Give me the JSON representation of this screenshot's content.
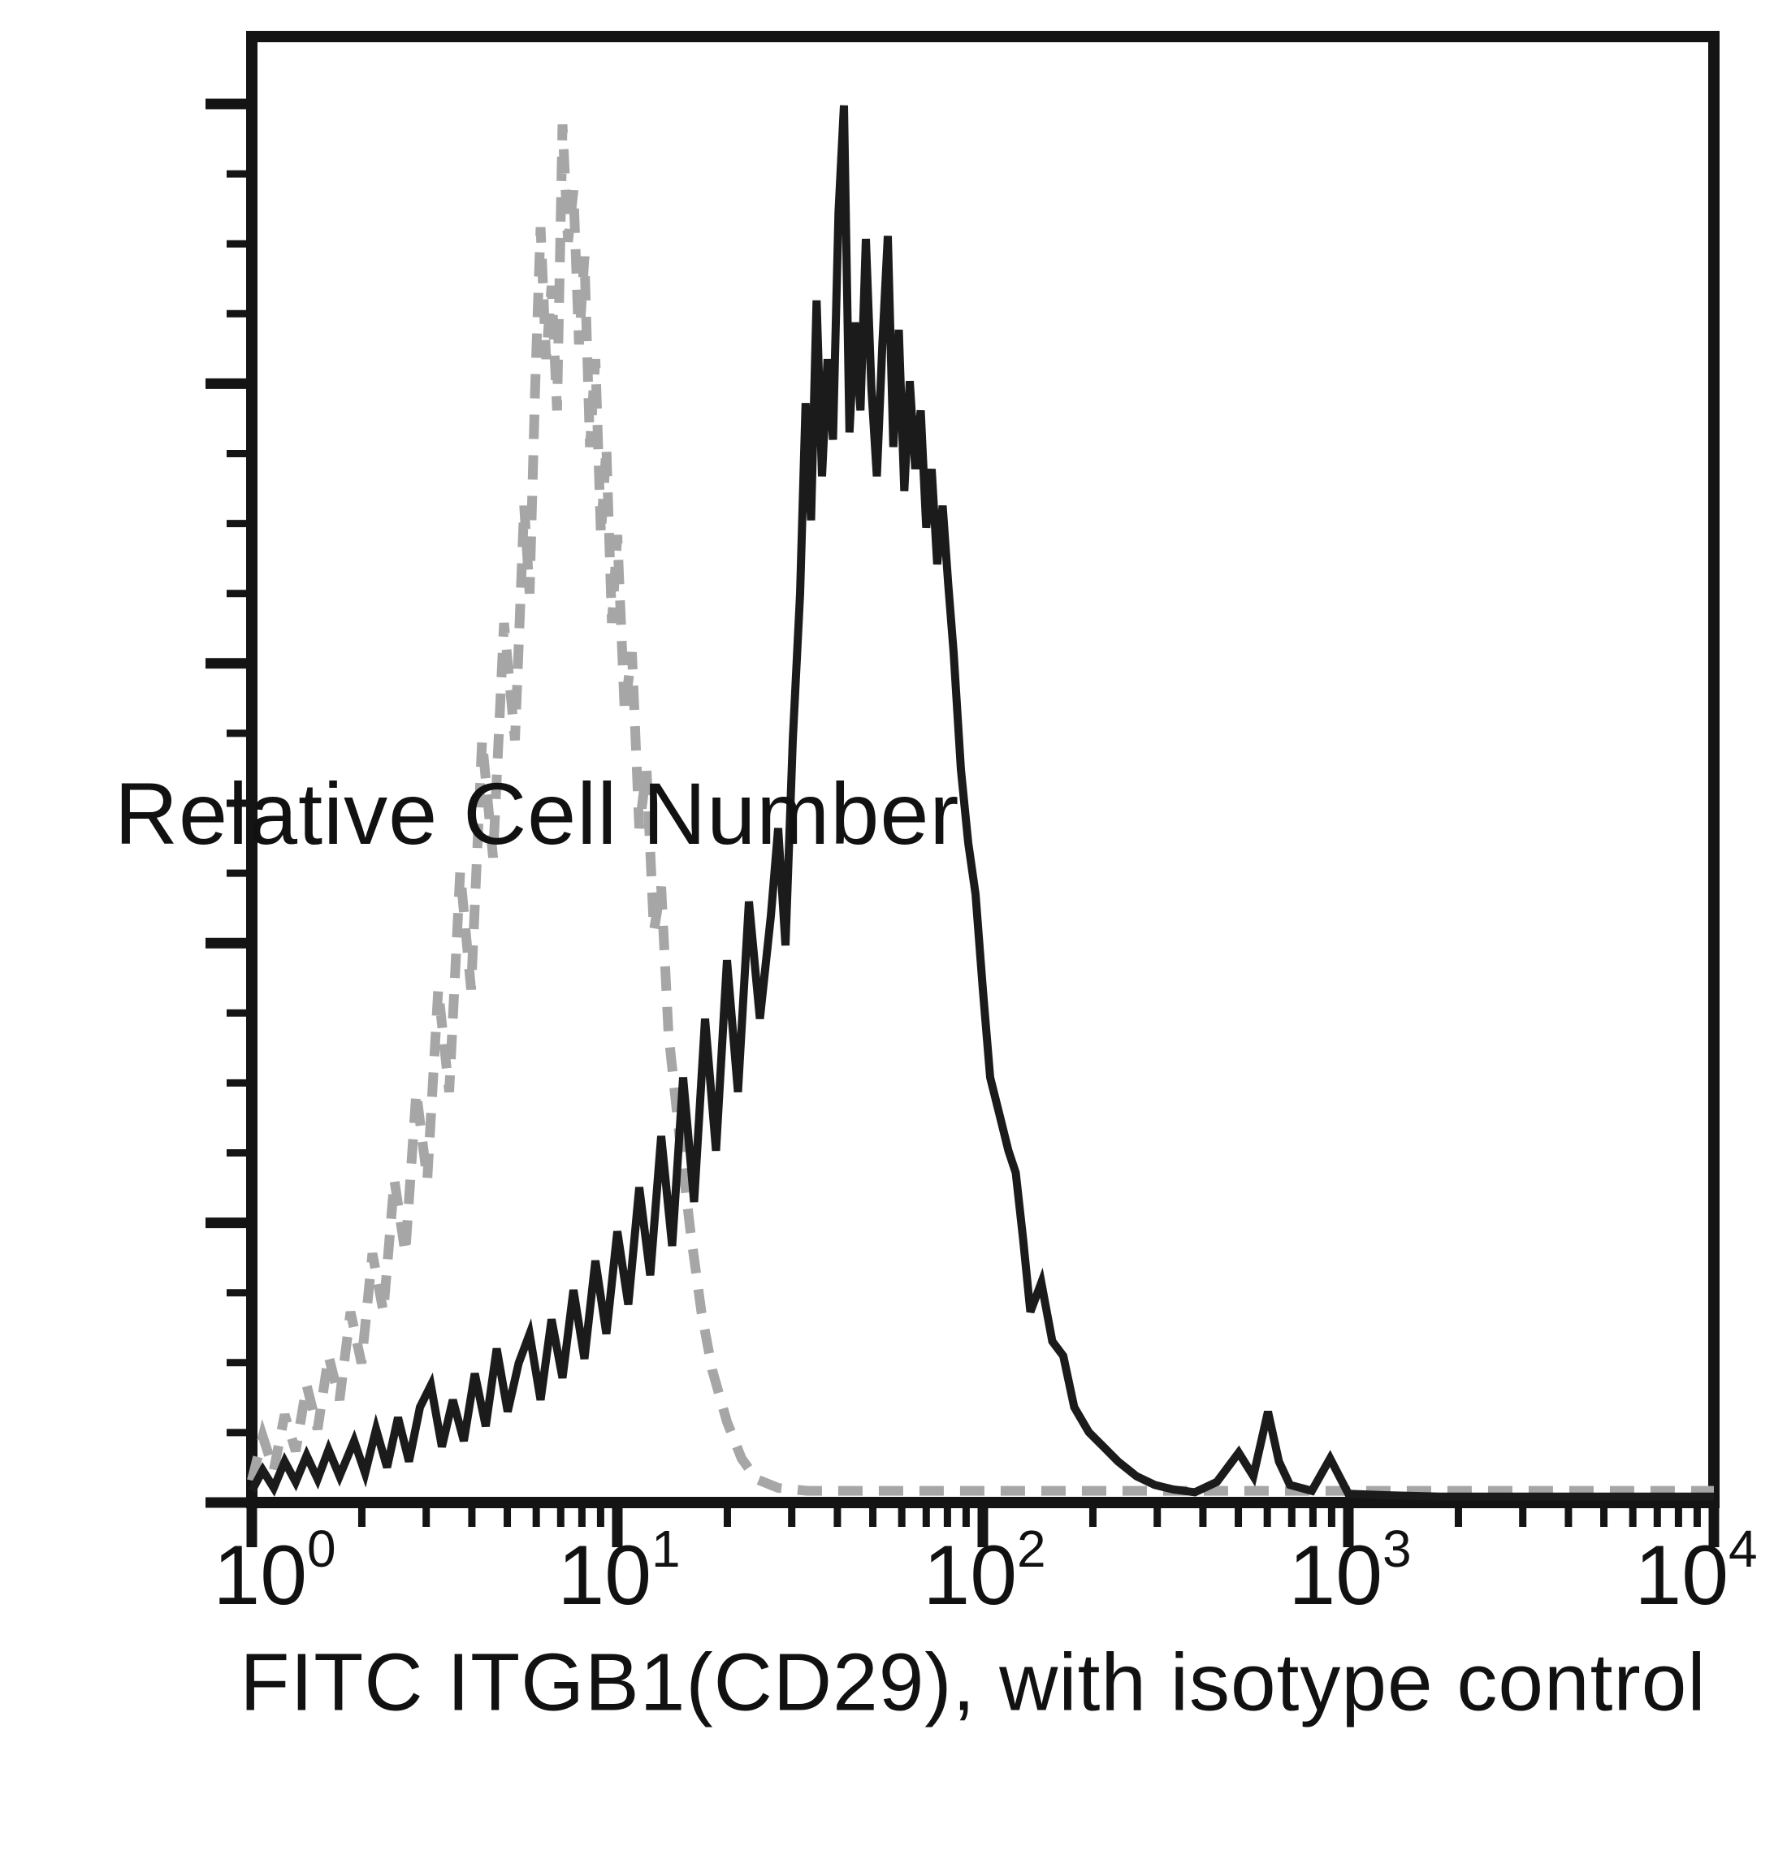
{
  "axes": {
    "y": {
      "label": "Relative Cell Number",
      "tick_labels": []
    },
    "x": {
      "label": "FITC ITGB1(CD29), with isotype control",
      "ticks": [
        {
          "base": "10",
          "exp": "0"
        },
        {
          "base": "10",
          "exp": "1"
        },
        {
          "base": "10",
          "exp": "2"
        },
        {
          "base": "10",
          "exp": "3"
        },
        {
          "base": "10",
          "exp": "4"
        }
      ]
    }
  },
  "chart_data": {
    "type": "line",
    "subtype": "flow-cytometry-overlay-histogram",
    "title": "",
    "xlabel": "FITC ITGB1(CD29), with isotype control",
    "ylabel": "Relative Cell Number",
    "x_scale": "log10",
    "x_range": [
      1,
      10000
    ],
    "x_decades": 4,
    "y_range_relative": [
      0,
      1
    ],
    "y_major_ticks": 6,
    "y_minors_per_major_gap": 3,
    "grid": false,
    "legend_position": "none",
    "frame_color": "#141414",
    "background": "#ffffff",
    "series": [
      {
        "name": "Isotype control",
        "line_style": "dashed",
        "color": "#a6a6a6",
        "stroke_width": 12,
        "dash": [
          30,
          20
        ],
        "peak_x_approx": 7,
        "points_log10x_relheight": [
          [
            0,
            0.015
          ],
          [
            0.03,
            0.045
          ],
          [
            0.06,
            0.022
          ],
          [
            0.09,
            0.06
          ],
          [
            0.12,
            0.035
          ],
          [
            0.15,
            0.08
          ],
          [
            0.18,
            0.05
          ],
          [
            0.21,
            0.1
          ],
          [
            0.24,
            0.07
          ],
          [
            0.27,
            0.13
          ],
          [
            0.3,
            0.095
          ],
          [
            0.33,
            0.17
          ],
          [
            0.36,
            0.13
          ],
          [
            0.39,
            0.22
          ],
          [
            0.42,
            0.17
          ],
          [
            0.45,
            0.28
          ],
          [
            0.48,
            0.22
          ],
          [
            0.51,
            0.35
          ],
          [
            0.54,
            0.28
          ],
          [
            0.57,
            0.43
          ],
          [
            0.6,
            0.35
          ],
          [
            0.63,
            0.52
          ],
          [
            0.66,
            0.44
          ],
          [
            0.69,
            0.6
          ],
          [
            0.72,
            0.52
          ],
          [
            0.745,
            0.68
          ],
          [
            0.76,
            0.62
          ],
          [
            0.775,
            0.76
          ],
          [
            0.79,
            0.87
          ],
          [
            0.805,
            0.78
          ],
          [
            0.82,
            0.83
          ],
          [
            0.835,
            0.745
          ],
          [
            0.85,
            0.94
          ],
          [
            0.865,
            0.86
          ],
          [
            0.88,
            0.895
          ],
          [
            0.895,
            0.79
          ],
          [
            0.91,
            0.85
          ],
          [
            0.925,
            0.72
          ],
          [
            0.94,
            0.78
          ],
          [
            0.955,
            0.66
          ],
          [
            0.97,
            0.72
          ],
          [
            0.985,
            0.6
          ],
          [
            1,
            0.66
          ],
          [
            1.02,
            0.54
          ],
          [
            1.04,
            0.58
          ],
          [
            1.06,
            0.46
          ],
          [
            1.08,
            0.5
          ],
          [
            1.1,
            0.39
          ],
          [
            1.12,
            0.42
          ],
          [
            1.14,
            0.32
          ],
          [
            1.17,
            0.25
          ],
          [
            1.2,
            0.185
          ],
          [
            1.23,
            0.13
          ],
          [
            1.26,
            0.09
          ],
          [
            1.3,
            0.055
          ],
          [
            1.34,
            0.03
          ],
          [
            1.38,
            0.016
          ],
          [
            1.44,
            0.01
          ],
          [
            1.52,
            0.008
          ],
          [
            1.7,
            0.008
          ],
          [
            2,
            0.008
          ],
          [
            2.3,
            0.008
          ],
          [
            2.6,
            0.008
          ],
          [
            3,
            0.008
          ],
          [
            3.4,
            0.008
          ],
          [
            3.7,
            0.008
          ],
          [
            4,
            0.008
          ]
        ]
      },
      {
        "name": "FITC ITGB1(CD29)",
        "line_style": "solid",
        "color": "#1b1b1b",
        "stroke_width": 10,
        "peak_x_approx": 42,
        "points_log10x_relheight": [
          [
            0,
            0.008
          ],
          [
            0.03,
            0.022
          ],
          [
            0.06,
            0.01
          ],
          [
            0.09,
            0.028
          ],
          [
            0.12,
            0.014
          ],
          [
            0.15,
            0.032
          ],
          [
            0.18,
            0.016
          ],
          [
            0.21,
            0.036
          ],
          [
            0.24,
            0.018
          ],
          [
            0.28,
            0.042
          ],
          [
            0.31,
            0.02
          ],
          [
            0.34,
            0.05
          ],
          [
            0.37,
            0.024
          ],
          [
            0.4,
            0.058
          ],
          [
            0.43,
            0.028
          ],
          [
            0.46,
            0.065
          ],
          [
            0.49,
            0.08
          ],
          [
            0.52,
            0.038
          ],
          [
            0.55,
            0.07
          ],
          [
            0.58,
            0.042
          ],
          [
            0.61,
            0.088
          ],
          [
            0.64,
            0.052
          ],
          [
            0.67,
            0.105
          ],
          [
            0.7,
            0.062
          ],
          [
            0.73,
            0.095
          ],
          [
            0.76,
            0.115
          ],
          [
            0.79,
            0.07
          ],
          [
            0.82,
            0.125
          ],
          [
            0.85,
            0.085
          ],
          [
            0.88,
            0.145
          ],
          [
            0.91,
            0.098
          ],
          [
            0.94,
            0.165
          ],
          [
            0.97,
            0.115
          ],
          [
            1,
            0.185
          ],
          [
            1.03,
            0.135
          ],
          [
            1.06,
            0.215
          ],
          [
            1.09,
            0.155
          ],
          [
            1.12,
            0.25
          ],
          [
            1.15,
            0.175
          ],
          [
            1.18,
            0.29
          ],
          [
            1.21,
            0.205
          ],
          [
            1.24,
            0.33
          ],
          [
            1.27,
            0.24
          ],
          [
            1.3,
            0.37
          ],
          [
            1.33,
            0.28
          ],
          [
            1.36,
            0.41
          ],
          [
            1.39,
            0.33
          ],
          [
            1.42,
            0.4
          ],
          [
            1.44,
            0.46
          ],
          [
            1.46,
            0.38
          ],
          [
            1.48,
            0.52
          ],
          [
            1.5,
            0.62
          ],
          [
            1.515,
            0.75
          ],
          [
            1.53,
            0.67
          ],
          [
            1.545,
            0.82
          ],
          [
            1.56,
            0.7
          ],
          [
            1.575,
            0.78
          ],
          [
            1.59,
            0.725
          ],
          [
            1.605,
            0.88
          ],
          [
            1.62,
            0.953
          ],
          [
            1.635,
            0.73
          ],
          [
            1.65,
            0.805
          ],
          [
            1.665,
            0.745
          ],
          [
            1.68,
            0.862
          ],
          [
            1.695,
            0.76
          ],
          [
            1.71,
            0.7
          ],
          [
            1.725,
            0.79
          ],
          [
            1.74,
            0.864
          ],
          [
            1.755,
            0.72
          ],
          [
            1.77,
            0.8
          ],
          [
            1.785,
            0.69
          ],
          [
            1.8,
            0.765
          ],
          [
            1.815,
            0.705
          ],
          [
            1.83,
            0.745
          ],
          [
            1.845,
            0.665
          ],
          [
            1.86,
            0.705
          ],
          [
            1.875,
            0.64
          ],
          [
            1.89,
            0.68
          ],
          [
            1.905,
            0.627
          ],
          [
            1.92,
            0.58
          ],
          [
            1.94,
            0.5
          ],
          [
            1.96,
            0.45
          ],
          [
            1.98,
            0.415
          ],
          [
            2,
            0.35
          ],
          [
            2.02,
            0.29
          ],
          [
            2.045,
            0.265
          ],
          [
            2.07,
            0.24
          ],
          [
            2.09,
            0.225
          ],
          [
            2.11,
            0.18
          ],
          [
            2.13,
            0.13
          ],
          [
            2.16,
            0.15
          ],
          [
            2.19,
            0.11
          ],
          [
            2.22,
            0.1
          ],
          [
            2.25,
            0.065
          ],
          [
            2.29,
            0.048
          ],
          [
            2.33,
            0.038
          ],
          [
            2.37,
            0.028
          ],
          [
            2.42,
            0.018
          ],
          [
            2.47,
            0.012
          ],
          [
            2.52,
            0.009
          ],
          [
            2.58,
            0.007
          ],
          [
            2.64,
            0.014
          ],
          [
            2.7,
            0.034
          ],
          [
            2.74,
            0.018
          ],
          [
            2.78,
            0.062
          ],
          [
            2.81,
            0.028
          ],
          [
            2.84,
            0.012
          ],
          [
            2.9,
            0.008
          ],
          [
            2.95,
            0.03
          ],
          [
            3,
            0.006
          ],
          [
            3.1,
            0.005
          ],
          [
            3.25,
            0.004
          ],
          [
            3.5,
            0.004
          ],
          [
            3.75,
            0.004
          ],
          [
            4,
            0.004
          ]
        ]
      }
    ]
  }
}
